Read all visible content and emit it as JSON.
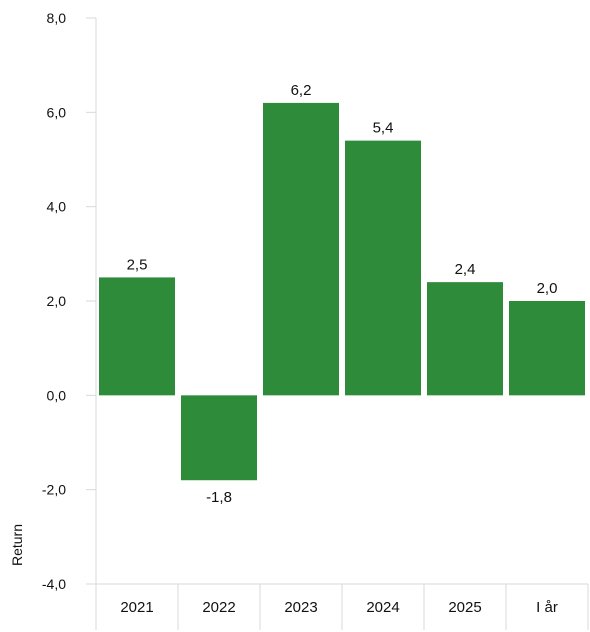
{
  "chart_data": {
    "type": "bar",
    "categories": [
      "2021",
      "2022",
      "2023",
      "2024",
      "2025",
      "I år"
    ],
    "values": [
      2.5,
      -1.8,
      6.2,
      5.4,
      2.4,
      2.0
    ],
    "data_labels": [
      "2,5",
      "-1,8",
      "6,2",
      "5,4",
      "2,4",
      "2,0"
    ],
    "ylabel": "Return",
    "ylim": [
      -4,
      8
    ],
    "yticks": [
      -4,
      -2,
      0,
      2,
      4,
      6,
      8
    ],
    "ytick_labels": [
      "-4,0",
      "-2,0",
      "0,0",
      "2,0",
      "4,0",
      "6,0",
      "8,0"
    ],
    "grid": false,
    "legend": "none",
    "bar_color": "#2e8b3a",
    "axis_color": "#d9d9d9",
    "label_color": "#111111"
  }
}
